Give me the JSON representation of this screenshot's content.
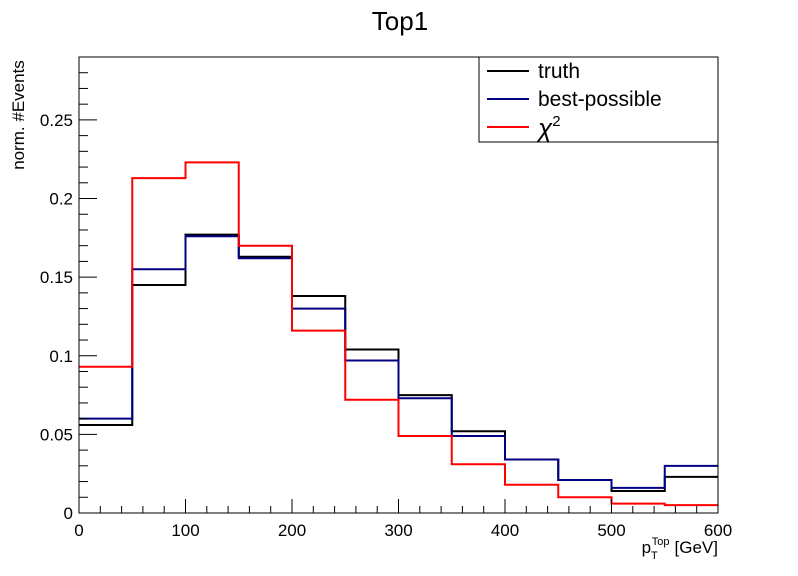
{
  "chart_data": {
    "type": "histogram",
    "title": "Top1",
    "xlabel": {
      "main": "p",
      "sub": "T",
      "sup": "Top",
      "unit": "[GeV]"
    },
    "ylabel": "norm. #Events",
    "xlim": [
      0,
      600
    ],
    "ylim": [
      0,
      0.29
    ],
    "bin_edges": [
      0,
      50,
      100,
      150,
      200,
      250,
      300,
      350,
      400,
      450,
      500,
      550,
      600
    ],
    "x_ticks": [
      "0",
      "100",
      "200",
      "300",
      "400",
      "500",
      "600"
    ],
    "y_ticks": [
      "0",
      "0.05",
      "0.1",
      "0.15",
      "0.2",
      "0.25"
    ],
    "grid": false,
    "legend_position": "top-right",
    "series": [
      {
        "name": "truth",
        "color": "#000000",
        "values": [
          0.056,
          0.145,
          0.177,
          0.163,
          0.138,
          0.104,
          0.075,
          0.052,
          0.034,
          0.021,
          0.014,
          0.023
        ]
      },
      {
        "name": "best-possible",
        "color": "#000080",
        "values": [
          0.06,
          0.155,
          0.176,
          0.162,
          0.13,
          0.097,
          0.073,
          0.049,
          0.034,
          0.021,
          0.016,
          0.03
        ]
      },
      {
        "name": "χ",
        "name_sup": "2",
        "color": "#ff0000",
        "values": [
          0.093,
          0.213,
          0.223,
          0.17,
          0.116,
          0.072,
          0.049,
          0.031,
          0.018,
          0.01,
          0.006,
          0.005
        ]
      }
    ]
  }
}
